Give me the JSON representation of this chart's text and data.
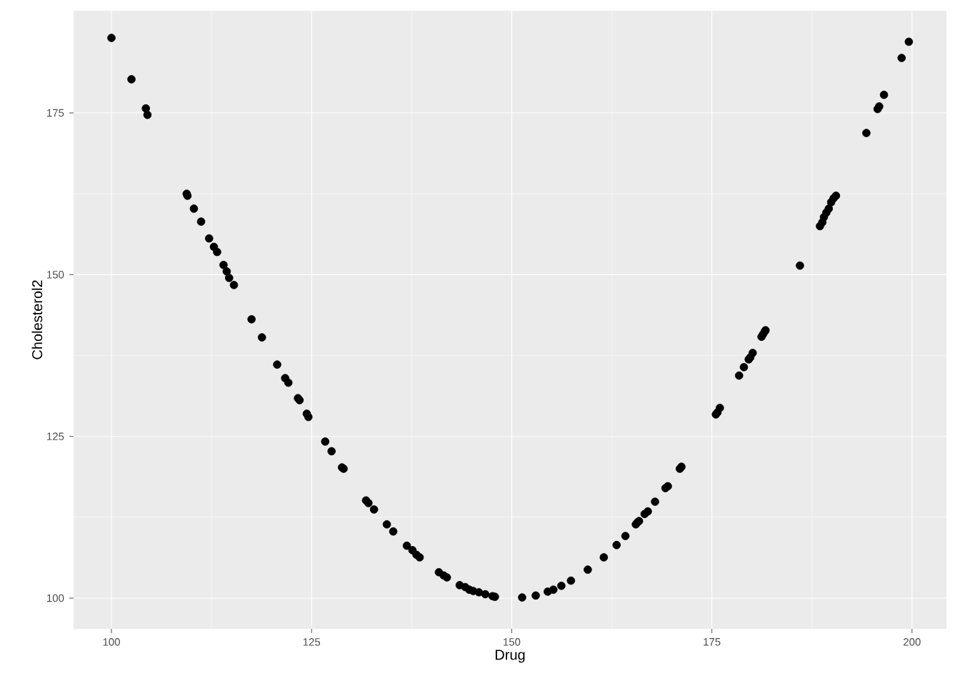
{
  "chart_data": {
    "type": "scatter",
    "xlabel": "Drug",
    "ylabel": "Cholesterol2",
    "color": "#000000",
    "grid": true,
    "xlim": [
      95.27,
      204.3
    ],
    "ylim": [
      95.25,
      190.8
    ],
    "xticks": [
      100,
      125,
      150,
      175,
      200
    ],
    "yticks": [
      100,
      125,
      150,
      175
    ],
    "x": [
      100,
      102.5,
      104.3,
      104.5,
      109.4,
      109.5,
      110.3,
      111.2,
      112.2,
      112.8,
      113.2,
      114.0,
      114.4,
      114.7,
      115.3,
      117.5,
      118.8,
      120.7,
      121.7,
      122.1,
      123.3,
      123.5,
      124.4,
      124.6,
      126.7,
      127.5,
      128.8,
      129.0,
      131.8,
      132.1,
      132.8,
      134.4,
      135.2,
      136.9,
      137.6,
      138.1,
      138.5,
      140.9,
      141.5,
      141.9,
      143.5,
      144.2,
      144.7,
      145.2,
      145.9,
      146.7,
      147.6,
      147.9,
      151.3,
      153.0,
      154.5,
      155.2,
      156.2,
      157.4,
      159.5,
      161.5,
      163.1,
      164.2,
      165.5,
      165.7,
      165.9,
      166.6,
      167.0,
      167.9,
      169.2,
      169.5,
      171.0,
      171.2,
      175.5,
      175.7,
      176.0,
      178.4,
      179.0,
      179.6,
      179.8,
      180.1,
      181.2,
      181.4,
      181.6,
      181.7,
      186.0,
      188.5,
      188.8,
      189.0,
      189.3,
      189.6,
      189.9,
      190.2,
      190.5,
      194.3,
      195.7,
      195.9,
      196.5,
      198.7,
      199.6
    ],
    "values": [
      186.6,
      180.2,
      175.7,
      174.7,
      162.5,
      162.2,
      160.2,
      158.2,
      155.6,
      154.3,
      153.5,
      151.5,
      150.5,
      149.5,
      148.4,
      143.1,
      140.3,
      136.1,
      134.0,
      133.3,
      130.9,
      130.6,
      128.5,
      128.0,
      124.2,
      122.7,
      120.2,
      120.0,
      115.1,
      114.7,
      113.7,
      111.4,
      110.3,
      108.1,
      107.4,
      106.7,
      106.3,
      104.0,
      103.5,
      103.2,
      102.0,
      101.7,
      101.3,
      101.1,
      100.9,
      100.6,
      100.3,
      100.2,
      100.1,
      100.4,
      101.0,
      101.3,
      101.9,
      102.7,
      104.4,
      106.3,
      108.2,
      109.6,
      111.4,
      111.7,
      111.9,
      113.0,
      113.4,
      114.9,
      117.0,
      117.3,
      120.0,
      120.3,
      128.4,
      128.7,
      129.4,
      134.4,
      135.7,
      136.9,
      137.2,
      137.9,
      140.4,
      140.8,
      141.2,
      141.4,
      151.4,
      157.5,
      158.1,
      158.9,
      159.6,
      160.2,
      161.2,
      161.8,
      162.2,
      171.9,
      175.6,
      176.0,
      177.8,
      183.5,
      186.0
    ]
  }
}
